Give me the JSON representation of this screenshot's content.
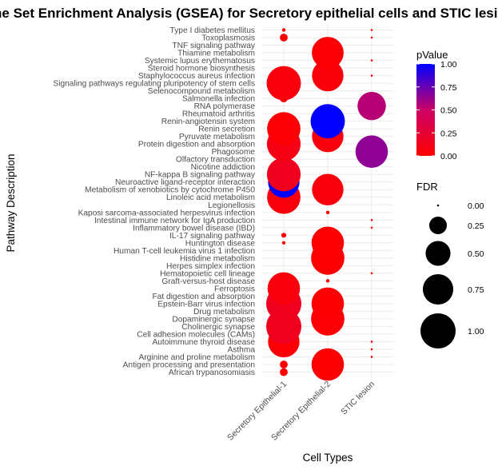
{
  "chart_data": {
    "type": "scatter",
    "title": "Gene Set Enrichment Analysis (GSEA) for Secretory epithelial cells and STIC lesions",
    "xlabel": "Cell Types",
    "ylabel": "Pathway Description",
    "categories_x": [
      "Secretory Epithelial-1",
      "Secretory Epithelial-2",
      "STIC lesion"
    ],
    "categories_y": [
      "African trypanosomiasis",
      "Antigen processing and presentation",
      "Arginine and proline metabolism",
      "Asthma",
      "Autoimmune thyroid disease",
      "Cell adhesion molecules (CAMs)",
      "Cholinergic synapse",
      "Dopaminergic synapse",
      "Drug metabolism",
      "Epstein-Barr virus infection",
      "Fat digestion and absorption",
      "Ferroptosis",
      "Graft-versus-host disease",
      "Hematopoietic cell lineage",
      "Herpes simplex infection",
      "Histidine metabolism",
      "Human T-cell leukemia virus 1 infection",
      "Huntington disease",
      "IL-17 signaling pathway",
      "Inflammatory bowel disease (IBD)",
      "Intestinal immune network for IgA production",
      "Kaposi sarcoma-associated herpesvirus infection",
      "Legionellosis",
      "Linoleic acid metabolism",
      "Metabolism of xenobiotics by cytochrome P450",
      "Neuroactive ligand-receptor interaction",
      "NF-kappa B signaling pathway",
      "Nicotine addiction",
      "Olfactory transduction",
      "Phagosome",
      "Protein digestion and absorption",
      "Pyruvate metabolism",
      "Renin secretion",
      "Renin-angiotensin system",
      "Rheumatoid arthritis",
      "RNA polymerase",
      "Salmonella infection",
      "Selenocompound metabolism",
      "Signaling pathways regulating pluripotency of stem cells",
      "Staphylococcus aureus infection",
      "Steroid hormone biosynthesis",
      "Systemic lupus erythematosus",
      "Thiamine metabolism",
      "TNF signaling pathway",
      "Toxoplasmosis",
      "Type I diabetes mellitus"
    ],
    "points": [
      {
        "x": "Secretory Epithelial-1",
        "y": "African trypanosomiasis",
        "fdr": 0.05,
        "pvalue": 0.0
      },
      {
        "x": "Secretory Epithelial-1",
        "y": "Antigen processing and presentation",
        "fdr": 0.05,
        "pvalue": 0.0
      },
      {
        "x": "Secretory Epithelial-1",
        "y": "Autoimmune thyroid disease",
        "fdr": 0.8,
        "pvalue": 0.03
      },
      {
        "x": "Secretory Epithelial-1",
        "y": "Cholinergic synapse",
        "fdr": 1.0,
        "pvalue": 0.15
      },
      {
        "x": "Secretory Epithelial-1",
        "y": "Epstein-Barr virus infection",
        "fdr": 1.0,
        "pvalue": 0.15
      },
      {
        "x": "Secretory Epithelial-1",
        "y": "Ferroptosis",
        "fdr": 0.85,
        "pvalue": 0.06
      },
      {
        "x": "Secretory Epithelial-1",
        "y": "Huntington disease",
        "fdr": 0.01,
        "pvalue": 0.0
      },
      {
        "x": "Secretory Epithelial-1",
        "y": "IL-17 signaling pathway",
        "fdr": 0.02,
        "pvalue": 0.0
      },
      {
        "x": "Secretory Epithelial-1",
        "y": "Linoleic acid metabolism",
        "fdr": 0.9,
        "pvalue": 0.06
      },
      {
        "x": "Secretory Epithelial-1",
        "y": "Neuroactive ligand-receptor interaction",
        "fdr": 0.8,
        "pvalue": 1.0
      },
      {
        "x": "Secretory Epithelial-1",
        "y": "NF-kappa B signaling pathway",
        "fdr": 0.92,
        "pvalue": 0.15
      },
      {
        "x": "Secretory Epithelial-1",
        "y": "Protein digestion and absorption",
        "fdr": 0.92,
        "pvalue": 0.1
      },
      {
        "x": "Secretory Epithelial-1",
        "y": "Renin secretion",
        "fdr": 0.9,
        "pvalue": 0.03
      },
      {
        "x": "Secretory Epithelial-1",
        "y": "Salmonella infection",
        "fdr": 0.05,
        "pvalue": 0.0
      },
      {
        "x": "Secretory Epithelial-1",
        "y": "Signaling pathways regulating pluripotency of stem cells",
        "fdr": 0.95,
        "pvalue": 0.06
      },
      {
        "x": "Secretory Epithelial-1",
        "y": "Toxoplasmosis",
        "fdr": 0.05,
        "pvalue": 0.0
      },
      {
        "x": "Secretory Epithelial-1",
        "y": "Type I diabetes mellitus",
        "fdr": 0.01,
        "pvalue": 0.0
      },
      {
        "x": "Secretory Epithelial-2",
        "y": "Antigen processing and presentation",
        "fdr": 0.85,
        "pvalue": 0.02
      },
      {
        "x": "Secretory Epithelial-2",
        "y": "Dopaminergic synapse",
        "fdr": 0.9,
        "pvalue": 0.03
      },
      {
        "x": "Secretory Epithelial-2",
        "y": "Epstein-Barr virus infection",
        "fdr": 0.85,
        "pvalue": 0.02
      },
      {
        "x": "Secretory Epithelial-2",
        "y": "Graft-versus-host disease",
        "fdr": 0.01,
        "pvalue": 0.0
      },
      {
        "x": "Secretory Epithelial-2",
        "y": "Histidine metabolism",
        "fdr": 0.9,
        "pvalue": 0.02
      },
      {
        "x": "Secretory Epithelial-2",
        "y": "Huntington disease",
        "fdr": 0.85,
        "pvalue": 0.01
      },
      {
        "x": "Secretory Epithelial-2",
        "y": "Kaposi sarcoma-associated herpesvirus infection",
        "fdr": 0.01,
        "pvalue": 0.0
      },
      {
        "x": "Secretory Epithelial-2",
        "y": "Metabolism of xenobiotics by cytochrome P450",
        "fdr": 0.8,
        "pvalue": 0.06
      },
      {
        "x": "Secretory Epithelial-2",
        "y": "Pyruvate metabolism",
        "fdr": 0.8,
        "pvalue": 0.06
      },
      {
        "x": "Secretory Epithelial-2",
        "y": "Renin-angiotensin system",
        "fdr": 0.95,
        "pvalue": 1.0
      },
      {
        "x": "Secretory Epithelial-2",
        "y": "Staphylococcus aureus infection",
        "fdr": 0.8,
        "pvalue": 0.05
      },
      {
        "x": "Secretory Epithelial-2",
        "y": "Thiamine metabolism",
        "fdr": 0.82,
        "pvalue": 0.03
      },
      {
        "x": "STIC lesion",
        "y": "Type I diabetes mellitus",
        "fdr": 0.0,
        "pvalue": 0.0
      },
      {
        "x": "STIC lesion",
        "y": "Toxoplasmosis",
        "fdr": 0.0,
        "pvalue": 0.0
      },
      {
        "x": "STIC lesion",
        "y": "Systemic lupus erythematosus",
        "fdr": 0.0,
        "pvalue": 0.0
      },
      {
        "x": "STIC lesion",
        "y": "Staphylococcus aureus infection",
        "fdr": 0.0,
        "pvalue": 0.0
      },
      {
        "x": "STIC lesion",
        "y": "RNA polymerase",
        "fdr": 0.65,
        "pvalue": 0.55
      },
      {
        "x": "STIC lesion",
        "y": "Phagosome",
        "fdr": 0.85,
        "pvalue": 0.65
      },
      {
        "x": "STIC lesion",
        "y": "Intestinal immune network for IgA production",
        "fdr": 0.0,
        "pvalue": 0.0
      },
      {
        "x": "STIC lesion",
        "y": "Inflammatory bowel disease (IBD)",
        "fdr": 0.0,
        "pvalue": 0.0
      },
      {
        "x": "STIC lesion",
        "y": "Hematopoietic cell lineage",
        "fdr": 0.0,
        "pvalue": 0.0
      },
      {
        "x": "STIC lesion",
        "y": "Autoimmune thyroid disease",
        "fdr": 0.0,
        "pvalue": 0.0
      },
      {
        "x": "STIC lesion",
        "y": "Asthma",
        "fdr": 0.0,
        "pvalue": 0.0
      },
      {
        "x": "STIC lesion",
        "y": "Arginine and proline metabolism",
        "fdr": 0.0,
        "pvalue": 0.0
      }
    ],
    "color_legend": {
      "title": "pValue",
      "ticks": [
        "0.00",
        "0.25",
        "0.50",
        "0.75",
        "1.00"
      ],
      "low_color": "#ff0000",
      "high_color": "#0000ff"
    },
    "size_legend": {
      "title": "FDR",
      "ticks": [
        "0.00",
        "0.25",
        "0.50",
        "0.75",
        "1.00"
      ]
    },
    "grid": true
  }
}
